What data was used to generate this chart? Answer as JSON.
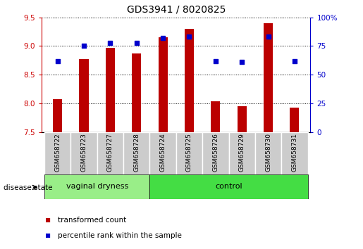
{
  "title": "GDS3941 / 8020825",
  "samples": [
    "GSM658722",
    "GSM658723",
    "GSM658727",
    "GSM658728",
    "GSM658724",
    "GSM658725",
    "GSM658726",
    "GSM658729",
    "GSM658730",
    "GSM658731"
  ],
  "bar_values": [
    8.07,
    8.77,
    8.97,
    8.87,
    9.15,
    9.3,
    8.03,
    7.95,
    9.4,
    7.93
  ],
  "percentile_values": [
    62,
    75,
    78,
    78,
    82,
    83,
    62,
    61,
    83,
    62
  ],
  "ylim_left": [
    7.5,
    9.5
  ],
  "ylim_right": [
    0,
    100
  ],
  "yticks_left": [
    7.5,
    8.0,
    8.5,
    9.0,
    9.5
  ],
  "yticks_right": [
    0,
    25,
    50,
    75,
    100
  ],
  "ytick_labels_right": [
    "0",
    "25",
    "50",
    "75",
    "100%"
  ],
  "bar_color": "#bb0000",
  "scatter_color": "#0000cc",
  "bar_bottom": 7.5,
  "vaginal_dryness_indices": [
    0,
    1,
    2,
    3
  ],
  "control_indices": [
    4,
    5,
    6,
    7,
    8,
    9
  ],
  "vaginal_color": "#99ee88",
  "control_color": "#44dd44",
  "disease_state_label": "disease state",
  "legend_items": [
    {
      "label": "transformed count",
      "color": "#bb0000"
    },
    {
      "label": "percentile rank within the sample",
      "color": "#0000cc"
    }
  ],
  "left_tick_color": "#cc0000",
  "right_tick_color": "#0000cc",
  "label_box_color": "#cccccc",
  "bar_width": 0.35
}
